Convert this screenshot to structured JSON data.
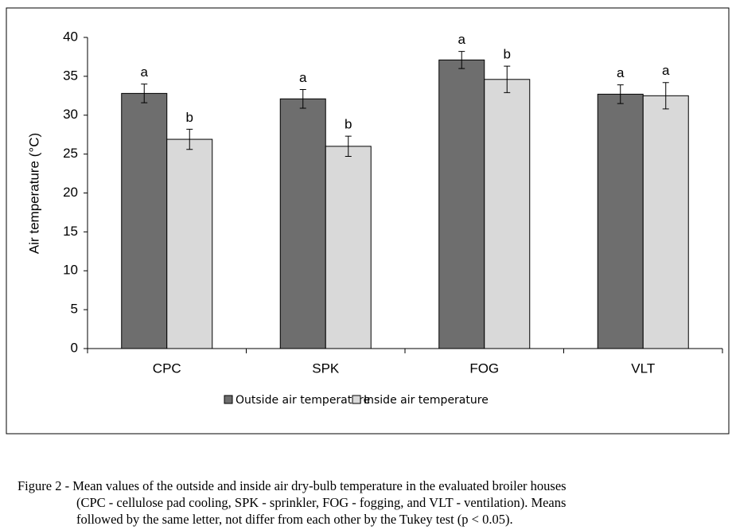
{
  "chart_data": {
    "type": "bar",
    "y_label": "Air temperature (°C)",
    "categories": [
      "CPC",
      "SPK",
      "FOG",
      "VLT"
    ],
    "series": [
      {
        "name": "Outside air temperature",
        "color": "#6e6e6e",
        "values": [
          32.8,
          32.1,
          37.1,
          32.7
        ],
        "errors": [
          1.2,
          1.2,
          1.1,
          1.2
        ],
        "letters": [
          "a",
          "a",
          "a",
          "a"
        ]
      },
      {
        "name": "Inside air temperature",
        "color": "#d9d9d9",
        "values": [
          26.9,
          26.0,
          34.6,
          32.5
        ],
        "errors": [
          1.3,
          1.3,
          1.7,
          1.7
        ],
        "letters": [
          "b",
          "b",
          "b",
          "a"
        ]
      }
    ],
    "ylim": [
      0,
      40
    ],
    "yticks": [
      0,
      5,
      10,
      15,
      20,
      25,
      30,
      35,
      40
    ],
    "grid": false,
    "legend": "bottom"
  },
  "caption": {
    "label": "Figure 2 -",
    "lines": [
      "Mean values of the outside and inside air dry-bulb temperature in the evaluated broiler houses",
      "(CPC - cellulose pad cooling, SPK - sprinkler, FOG - fogging, and VLT - ventilation). Means",
      "followed by the same letter, not differ from each other by the Tukey test (p < 0.05)."
    ]
  }
}
